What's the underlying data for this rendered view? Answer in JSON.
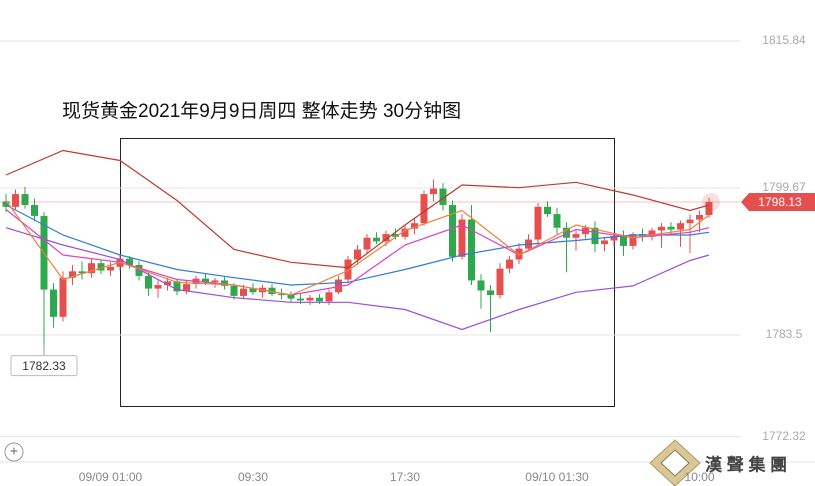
{
  "chart_data": {
    "type": "candlestick",
    "title": "现货黄金2021年9月9日周四 整体走势  30分钟图",
    "categories": [
      null,
      null,
      null,
      null,
      null,
      null,
      null,
      null,
      null,
      null,
      null,
      "09/09 01:00",
      null,
      null,
      null,
      null,
      null,
      null,
      null,
      null,
      null,
      null,
      null,
      null,
      null,
      null,
      "09:30",
      null,
      null,
      null,
      null,
      null,
      null,
      null,
      null,
      null,
      null,
      null,
      null,
      null,
      null,
      null,
      "17:30",
      null,
      null,
      null,
      null,
      null,
      null,
      null,
      null,
      null,
      null,
      null,
      null,
      null,
      null,
      null,
      "09/10 01:30",
      null,
      null,
      null,
      null,
      null,
      null,
      null,
      null,
      null,
      null,
      null,
      null,
      null,
      null,
      "10:00",
      null
    ],
    "open": [
      1798.2,
      1797.6,
      1799.0,
      1797.8,
      1796.6,
      1788.5,
      1785.5,
      1789.8,
      1790.5,
      1790.3,
      1791.4,
      1790.6,
      1791.0,
      1791.9,
      1791.2,
      1790.0,
      1788.6,
      1789.0,
      1789.4,
      1788.3,
      1789.1,
      1789.7,
      1789.3,
      1789.5,
      1788.9,
      1787.8,
      1788.6,
      1788.2,
      1788.7,
      1788.0,
      1787.9,
      1787.5,
      1787.3,
      1787.6,
      1787.2,
      1788.2,
      1789.6,
      1791.8,
      1792.9,
      1794.2,
      1793.8,
      1794.6,
      1794.3,
      1795.2,
      1795.8,
      1799.0,
      1799.6,
      1797.8,
      1792.1,
      1796.2,
      1789.5,
      1788.4,
      1787.9,
      1790.8,
      1791.8,
      1793.0,
      1794.0,
      1797.6,
      1796.8,
      1795.3,
      1794.2,
      1794.6,
      1795.3,
      1793.5,
      1793.9,
      1794.4,
      1793.3,
      1794.6,
      1794.3,
      1795.0,
      1795.4,
      1795.1,
      1795.8,
      1796.2,
      1796.7
    ],
    "high": [
      1799.0,
      1799.5,
      1799.8,
      1798.5,
      1797.0,
      1789.2,
      1790.5,
      1791.2,
      1791.6,
      1791.9,
      1791.8,
      1791.5,
      1792.3,
      1792.2,
      1791.6,
      1790.4,
      1789.5,
      1789.8,
      1789.7,
      1789.5,
      1790.0,
      1790.3,
      1789.8,
      1789.9,
      1789.2,
      1789.0,
      1789.2,
      1789.0,
      1789.1,
      1788.6,
      1788.3,
      1788.0,
      1787.9,
      1788.0,
      1788.5,
      1790.0,
      1792.2,
      1793.4,
      1794.6,
      1794.8,
      1795.0,
      1795.2,
      1795.6,
      1796.3,
      1799.4,
      1800.6,
      1800.2,
      1798.3,
      1796.8,
      1797.8,
      1790.2,
      1789.0,
      1791.4,
      1792.2,
      1793.6,
      1794.6,
      1798.0,
      1798.2,
      1797.5,
      1795.9,
      1795.0,
      1795.6,
      1796.0,
      1794.3,
      1794.7,
      1795.0,
      1794.8,
      1795.2,
      1795.3,
      1795.8,
      1795.9,
      1796.1,
      1796.8,
      1797.2,
      1798.6
    ],
    "low": [
      1797.0,
      1797.2,
      1797.4,
      1796.0,
      1782.33,
      1784.3,
      1785.0,
      1789.0,
      1789.6,
      1789.8,
      1790.2,
      1790.0,
      1790.6,
      1790.8,
      1789.5,
      1787.8,
      1787.6,
      1788.4,
      1787.9,
      1788.0,
      1788.6,
      1789.0,
      1788.7,
      1788.5,
      1787.4,
      1787.5,
      1787.9,
      1787.6,
      1787.8,
      1787.4,
      1787.1,
      1786.9,
      1786.8,
      1786.9,
      1786.8,
      1788.0,
      1789.2,
      1791.2,
      1792.4,
      1793.5,
      1793.3,
      1794.0,
      1794.0,
      1794.6,
      1795.5,
      1798.2,
      1797.2,
      1791.6,
      1791.8,
      1789.0,
      1786.4,
      1783.8,
      1787.5,
      1790.3,
      1791.3,
      1792.8,
      1793.5,
      1796.5,
      1794.6,
      1790.4,
      1792.8,
      1794.1,
      1792.6,
      1792.7,
      1793.2,
      1792.2,
      1792.9,
      1793.8,
      1793.9,
      1793.1,
      1794.6,
      1793.2,
      1792.5,
      1794.8,
      1796.4
    ],
    "close": [
      1797.6,
      1799.0,
      1797.8,
      1796.6,
      1788.5,
      1785.5,
      1789.8,
      1790.5,
      1790.3,
      1791.4,
      1790.6,
      1791.0,
      1791.9,
      1791.2,
      1790.0,
      1788.6,
      1789.0,
      1789.4,
      1788.3,
      1789.1,
      1789.7,
      1789.3,
      1789.5,
      1788.9,
      1787.8,
      1788.6,
      1788.2,
      1788.7,
      1788.0,
      1787.9,
      1787.5,
      1787.3,
      1787.6,
      1787.2,
      1788.2,
      1789.6,
      1791.8,
      1792.9,
      1794.2,
      1793.8,
      1794.6,
      1794.3,
      1795.2,
      1795.8,
      1799.0,
      1799.6,
      1797.8,
      1792.1,
      1796.2,
      1789.5,
      1788.4,
      1787.9,
      1790.8,
      1791.8,
      1793.0,
      1794.0,
      1797.6,
      1796.8,
      1795.3,
      1794.2,
      1794.6,
      1795.3,
      1793.5,
      1793.9,
      1794.4,
      1793.3,
      1794.6,
      1794.3,
      1795.0,
      1795.4,
      1795.1,
      1795.8,
      1796.2,
      1796.7,
      1798.13
    ],
    "up_color": "#e5504f",
    "down_color": "#2ea84c",
    "lines": [
      {
        "color": "#c0392b",
        "x": [
          0,
          6,
          12,
          18,
          24,
          30,
          36,
          42,
          48,
          54,
          60,
          66,
          72,
          74
        ],
        "values": [
          1801.1,
          1803.8,
          1802.7,
          1798.3,
          1792.9,
          1791.5,
          1790.9,
          1795.6,
          1800.0,
          1799.7,
          1800.3,
          1798.9,
          1797.2,
          1797.8
        ]
      },
      {
        "color": "#9b4de0",
        "x": [
          0,
          6,
          12,
          18,
          24,
          30,
          36,
          42,
          48,
          54,
          60,
          66,
          72,
          74
        ],
        "values": [
          1795.3,
          1793.4,
          1791.8,
          1788.5,
          1787.6,
          1787.1,
          1787.1,
          1786.3,
          1784.1,
          1786.3,
          1788.2,
          1788.9,
          1791.7,
          1792.3
        ]
      },
      {
        "color": "#2f7fd8",
        "x": [
          0,
          6,
          12,
          18,
          24,
          30,
          36,
          42,
          48,
          54,
          60,
          66,
          72,
          74
        ],
        "values": [
          1797.8,
          1794.5,
          1792.3,
          1790.7,
          1789.8,
          1789.0,
          1789.3,
          1790.7,
          1792.3,
          1793.4,
          1793.9,
          1794.5,
          1794.5,
          1794.8
        ]
      },
      {
        "color": "#e040c8",
        "x": [
          0,
          6,
          12,
          18,
          24,
          30,
          36,
          42,
          48,
          54,
          60,
          66,
          72,
          74
        ],
        "values": [
          1797.3,
          1792.3,
          1791.5,
          1789.6,
          1789.0,
          1787.9,
          1789.0,
          1793.4,
          1795.6,
          1792.3,
          1795.1,
          1794.2,
          1794.8,
          1795.3
        ]
      },
      {
        "color": "#e8853a",
        "x": [
          0,
          6,
          12,
          18,
          24,
          30,
          36,
          42,
          48,
          54,
          60,
          66,
          72,
          74
        ],
        "values": [
          1798.3,
          1789.6,
          1791.5,
          1789.3,
          1789.0,
          1787.9,
          1790.6,
          1795.0,
          1797.2,
          1792.3,
          1795.6,
          1794.2,
          1795.1,
          1796.7
        ]
      }
    ],
    "ylim": [
      1769.75,
      1820.35
    ],
    "yticks": [
      1815.84,
      1799.67,
      1783.5,
      1772.32
    ],
    "grid": true
  },
  "watermark": "漢 聲 集 團"
}
